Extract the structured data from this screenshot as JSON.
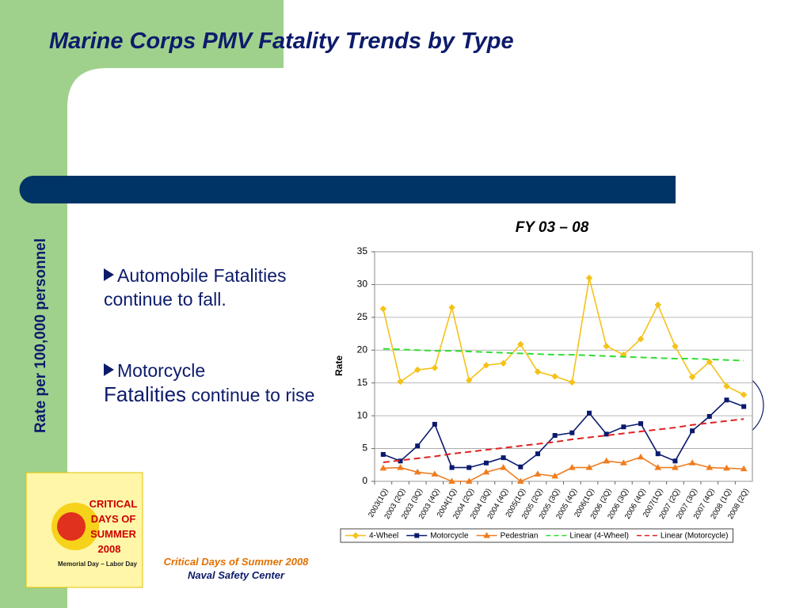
{
  "slide": {
    "title": "Marine Corps PMV Fatality Trends by Type",
    "side_label": "Rate per 100,000 personnel",
    "bullets": [
      {
        "parts": [
          "Automobile Fatalities continue to fall."
        ]
      },
      {
        "parts": [
          "Motorcycle",
          "Fatalities",
          "continue to rise"
        ]
      }
    ],
    "logo": [
      "CRITICAL",
      "DAYS OF",
      "SUMMER",
      "2008",
      "Memorial Day – Labor Day"
    ],
    "footer": [
      "Critical Days of Summer 2008",
      "Naval Safety Center"
    ]
  },
  "chart_data": {
    "type": "line",
    "title": "FY 03 – 08",
    "y_label": "Rate",
    "categories": [
      "2003(1Q)",
      "2003 (2Q)",
      "2003 (3Q)",
      "2003 (4Q)",
      "2004(1Q)",
      "2004 (2Q)",
      "2004 (3Q)",
      "2004 (4Q)",
      "2005(1Q)",
      "2005 (2Q)",
      "2005 (3Q)",
      "2005 (4Q)",
      "2006(1Q)",
      "2006 (2Q)",
      "2006 (3Q)",
      "2006 (4Q)",
      "2007(1Q)",
      "2007 (2Q)",
      "2007 (3Q)",
      "2007 (4Q)",
      "2008 (1Q)",
      "2008 (2Q)"
    ],
    "series": [
      {
        "name": "4-Wheel",
        "color": "#f5c218",
        "marker": "diamond",
        "dashed": false,
        "values": [
          26.3,
          15.2,
          17.0,
          17.3,
          26.5,
          15.4,
          17.7,
          18.0,
          20.9,
          16.7,
          16.0,
          15.1,
          31.0,
          20.6,
          19.3,
          21.7,
          26.9,
          20.6,
          15.9,
          18.2,
          14.5,
          13.2
        ]
      },
      {
        "name": "Motorcycle",
        "color": "#0a1a6e",
        "marker": "square",
        "dashed": false,
        "values": [
          4.1,
          3.1,
          5.4,
          8.7,
          2.1,
          2.1,
          2.8,
          3.6,
          2.2,
          4.2,
          7.0,
          7.4,
          10.4,
          7.2,
          8.3,
          8.8,
          4.2,
          3.1,
          7.7,
          9.9,
          12.4,
          11.4
        ]
      },
      {
        "name": "Pedestrian",
        "color": "#f07c1e",
        "marker": "triangle",
        "dashed": false,
        "values": [
          2.0,
          2.1,
          1.4,
          1.1,
          0,
          0,
          1.4,
          2.1,
          0,
          1.1,
          0.8,
          2.1,
          2.1,
          3.1,
          2.8,
          3.7,
          2.1,
          2.1,
          2.8,
          2.1,
          2.0,
          1.9
        ]
      },
      {
        "name": "Linear (4-Wheel)",
        "color": "#33dd33",
        "marker": "none",
        "dashed": true,
        "values": [
          20.2,
          20.1,
          20.0,
          19.9,
          19.9,
          19.8,
          19.7,
          19.6,
          19.5,
          19.4,
          19.3,
          19.3,
          19.2,
          19.1,
          19.0,
          18.9,
          18.8,
          18.7,
          18.7,
          18.6,
          18.5,
          18.4
        ]
      },
      {
        "name": "Linear (Motorcycle)",
        "color": "#dd2222",
        "marker": "none",
        "dashed": true,
        "values": [
          2.9,
          3.2,
          3.5,
          3.8,
          4.2,
          4.5,
          4.8,
          5.1,
          5.4,
          5.7,
          6.0,
          6.4,
          6.7,
          7.0,
          7.3,
          7.6,
          7.9,
          8.2,
          8.6,
          8.9,
          9.2,
          9.5
        ]
      }
    ],
    "ylim": [
      0,
      35
    ],
    "yticks": [
      0,
      5,
      10,
      15,
      20,
      25,
      30,
      35
    ],
    "grid": true,
    "legend": "bottom"
  }
}
